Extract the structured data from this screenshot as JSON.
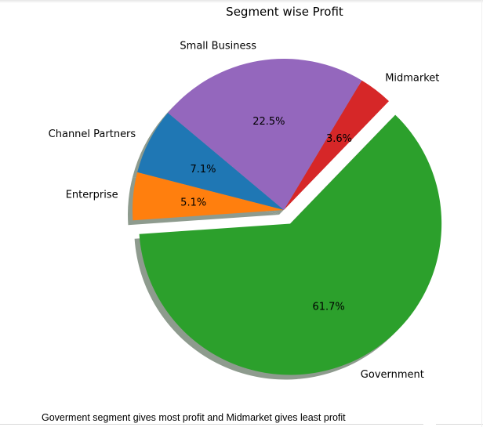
{
  "chart_data": {
    "type": "pie",
    "title": "Segment wise Profit",
    "categories": [
      "Channel Partners",
      "Enterprise",
      "Government",
      "Midmarket",
      "Small Business"
    ],
    "values": [
      7.1,
      5.1,
      61.7,
      3.6,
      22.5
    ],
    "percent_labels": [
      "7.1%",
      "5.1%",
      "61.7%",
      "3.6%",
      "22.5%"
    ],
    "colors": [
      "#1f77b4",
      "#ff7f0e",
      "#2ca02c",
      "#d62728",
      "#9467bd"
    ],
    "explode": [
      0,
      0,
      0.1,
      0,
      0
    ],
    "shadow": true,
    "start_angle_deg": 140,
    "legend": "none"
  },
  "caption": "Goverment segment gives most profit and Midmarket gives least profit"
}
